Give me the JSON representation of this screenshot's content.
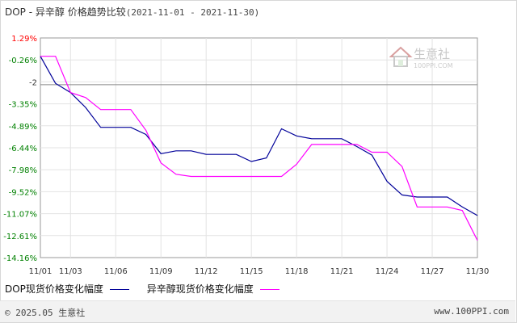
{
  "title": {
    "main": "DOP - 异辛醇 价格趋势比较",
    "range": "(2021-11-01 - 2021-11-30)"
  },
  "watermark": {
    "text": "生意社",
    "subtext": "100PPI.COM"
  },
  "footer": {
    "left": "© 2025.05 生意社",
    "right": "www.100PPI.com"
  },
  "colors": {
    "series1": "#000099",
    "series2": "#ff00ff",
    "positive": "#ff0000",
    "negative": "#008000",
    "zero_line": "#888888"
  },
  "chart_data": {
    "type": "line",
    "x": [
      "11/01",
      "11/02",
      "11/03",
      "11/04",
      "11/05",
      "11/06",
      "11/07",
      "11/08",
      "11/09",
      "11/10",
      "11/11",
      "11/12",
      "11/13",
      "11/14",
      "11/15",
      "11/16",
      "11/17",
      "11/18",
      "11/19",
      "11/20",
      "11/21",
      "11/22",
      "11/23",
      "11/24",
      "11/25",
      "11/26",
      "11/27",
      "11/28",
      "11/29",
      "11/30"
    ],
    "x_tick_labels": [
      "11/01",
      "11/03",
      "11/06",
      "11/09",
      "11/12",
      "11/15",
      "11/18",
      "11/21",
      "11/24",
      "11/27",
      "11/30"
    ],
    "y_tick_labels": [
      "1.29%",
      "-0.26%",
      "-2",
      "-3.35%",
      "-4.89%",
      "-6.44%",
      "-7.98%",
      "-9.52%",
      "-11.07%",
      "-12.61%",
      "-14.16%"
    ],
    "ylim": [
      -14.16,
      1.29
    ],
    "zero_line": -2,
    "series": [
      {
        "name": "DOP现货价格变化幅度",
        "values": [
          0,
          -1.9,
          -2.55,
          -3.6,
          -5.0,
          -5.0,
          -5.0,
          -5.5,
          -6.85,
          -6.65,
          -6.65,
          -6.9,
          -6.9,
          -6.9,
          -7.4,
          -7.15,
          -5.1,
          -5.6,
          -5.8,
          -5.8,
          -5.8,
          -6.35,
          -6.95,
          -8.8,
          -9.75,
          -9.9,
          -9.9,
          -9.9,
          -10.6,
          -11.2
        ]
      },
      {
        "name": "异辛醇现货价格变化幅度",
        "values": [
          0,
          0,
          -2.55,
          -2.9,
          -3.75,
          -3.75,
          -3.75,
          -5.2,
          -7.5,
          -8.3,
          -8.45,
          -8.45,
          -8.45,
          -8.45,
          -8.45,
          -8.45,
          -8.45,
          -7.6,
          -6.2,
          -6.2,
          -6.2,
          -6.2,
          -6.75,
          -6.75,
          -7.75,
          -10.6,
          -10.6,
          -10.6,
          -10.85,
          -12.95
        ]
      }
    ]
  }
}
